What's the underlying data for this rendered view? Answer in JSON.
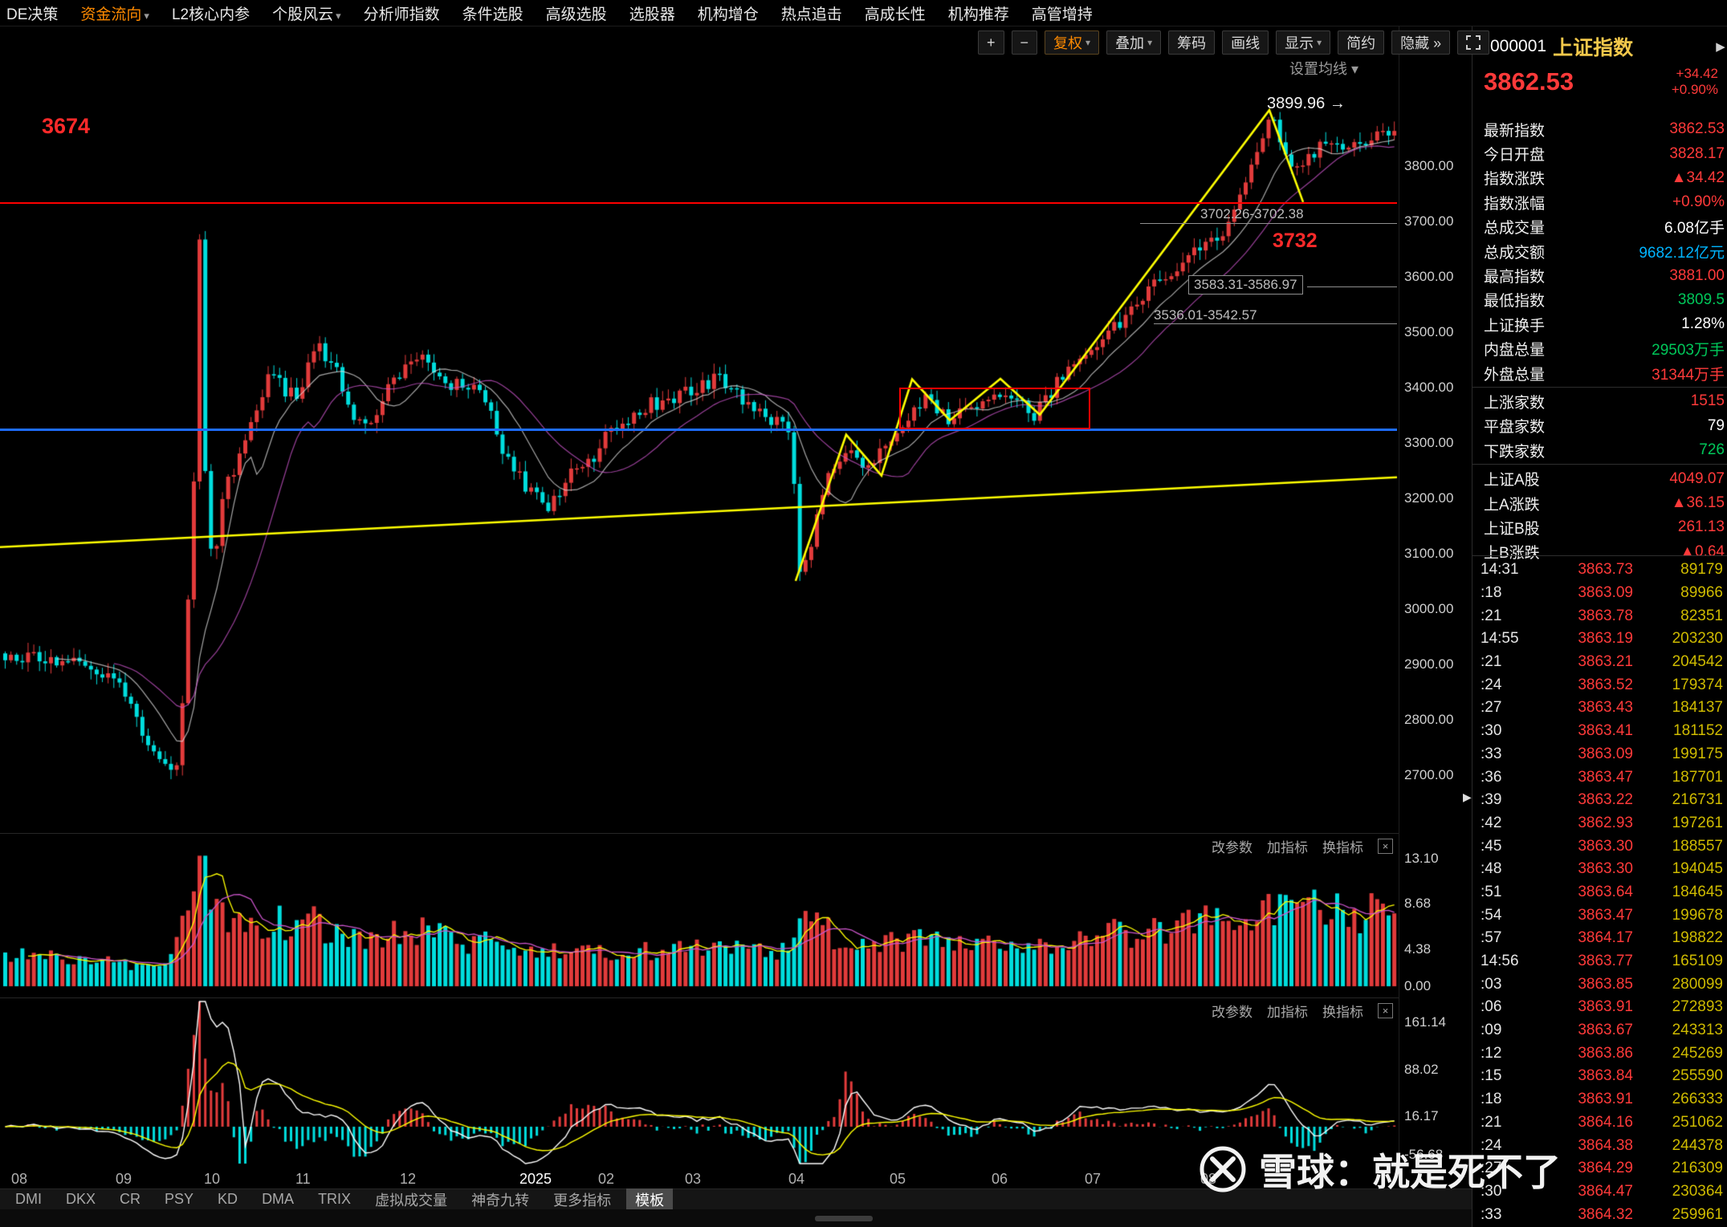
{
  "menu": {
    "items": [
      {
        "label": "DE决策",
        "caret": false,
        "active": false
      },
      {
        "label": "资金流向",
        "caret": true,
        "active": true
      },
      {
        "label": "L2核心内参",
        "caret": false,
        "active": false
      },
      {
        "label": "个股风云",
        "caret": true,
        "active": false
      },
      {
        "label": "分析师指数",
        "caret": false,
        "active": false
      },
      {
        "label": "条件选股",
        "caret": false,
        "active": false
      },
      {
        "label": "高级选股",
        "caret": false,
        "active": false
      },
      {
        "label": "选股器",
        "caret": false,
        "active": false
      },
      {
        "label": "机构增仓",
        "caret": false,
        "active": false
      },
      {
        "label": "热点追击",
        "caret": false,
        "active": false
      },
      {
        "label": "高成长性",
        "caret": false,
        "active": false
      },
      {
        "label": "机构推荐",
        "caret": false,
        "active": false
      },
      {
        "label": "高管增持",
        "caret": false,
        "active": false
      }
    ]
  },
  "toolbar": {
    "zoom_in": "+",
    "zoom_out": "−",
    "fuquan": "复权",
    "overlay": "叠加",
    "chips": "筹码",
    "draw": "画线",
    "display": "显示",
    "simple": "简约",
    "hide": "隐藏 »",
    "set_ma": "设置均线 ▾"
  },
  "chart": {
    "y_labels": [
      "3800.00",
      "3700.00",
      "3600.00",
      "3500.00",
      "3400.00",
      "3300.00",
      "3200.00",
      "3100.00",
      "3000.00",
      "2900.00",
      "2800.00",
      "2700.00"
    ],
    "vol_labels": [
      "13.10",
      "8.68",
      "4.38",
      "0.00"
    ],
    "ind_labels": [
      "161.14",
      "88.02",
      "16.17",
      "-56.68"
    ],
    "x_labels": [
      "08",
      "09",
      "10",
      "11",
      "12",
      "2025",
      "02",
      "03",
      "04",
      "05",
      "06",
      "07",
      "08"
    ],
    "panels": {
      "edit": "改参数",
      "add": "加指标",
      "switch": "换指标",
      "close": "×"
    },
    "annotations": {
      "high_left": "3674",
      "peak": "3899.96 →",
      "level": "3732",
      "range_a": "3702.26-3702.38",
      "range_b": "3583.31-3586.97",
      "range_c": "3536.01-3542.57"
    }
  },
  "chart_data": {
    "type": "candlestick",
    "title": "上证指数 日K",
    "ylim": [
      2640,
      3960
    ],
    "price_path": [
      [
        0,
        2920
      ],
      [
        0.05,
        2900
      ],
      [
        0.08,
        2880
      ],
      [
        0.1,
        2770
      ],
      [
        0.118,
        2700
      ],
      [
        0.126,
        2740
      ],
      [
        0.13,
        2950
      ],
      [
        0.134,
        3083
      ],
      [
        0.1365,
        3300
      ],
      [
        0.1385,
        3674
      ],
      [
        0.1405,
        3674
      ],
      [
        0.1425,
        3300
      ],
      [
        0.146,
        3170
      ],
      [
        0.15,
        3080
      ],
      [
        0.158,
        3220
      ],
      [
        0.17,
        3280
      ],
      [
        0.19,
        3420
      ],
      [
        0.21,
        3380
      ],
      [
        0.225,
        3480
      ],
      [
        0.24,
        3420
      ],
      [
        0.25,
        3350
      ],
      [
        0.265,
        3330
      ],
      [
        0.28,
        3420
      ],
      [
        0.3,
        3470
      ],
      [
        0.315,
        3400
      ],
      [
        0.33,
        3410
      ],
      [
        0.345,
        3380
      ],
      [
        0.36,
        3280
      ],
      [
        0.375,
        3220
      ],
      [
        0.39,
        3180
      ],
      [
        0.405,
        3240
      ],
      [
        0.42,
        3260
      ],
      [
        0.435,
        3320
      ],
      [
        0.45,
        3340
      ],
      [
        0.465,
        3370
      ],
      [
        0.48,
        3380
      ],
      [
        0.5,
        3400
      ],
      [
        0.515,
        3420
      ],
      [
        0.53,
        3380
      ],
      [
        0.545,
        3350
      ],
      [
        0.558,
        3340
      ],
      [
        0.566,
        3310
      ],
      [
        0.572,
        3055
      ],
      [
        0.578,
        3100
      ],
      [
        0.59,
        3230
      ],
      [
        0.605,
        3280
      ],
      [
        0.62,
        3260
      ],
      [
        0.635,
        3290
      ],
      [
        0.65,
        3350
      ],
      [
        0.665,
        3380
      ],
      [
        0.68,
        3340
      ],
      [
        0.695,
        3360
      ],
      [
        0.71,
        3390
      ],
      [
        0.725,
        3380
      ],
      [
        0.74,
        3350
      ],
      [
        0.755,
        3400
      ],
      [
        0.77,
        3450
      ],
      [
        0.785,
        3480
      ],
      [
        0.8,
        3510
      ],
      [
        0.815,
        3560
      ],
      [
        0.83,
        3590
      ],
      [
        0.845,
        3620
      ],
      [
        0.86,
        3650
      ],
      [
        0.875,
        3680
      ],
      [
        0.885,
        3720
      ],
      [
        0.895,
        3790
      ],
      [
        0.905,
        3855
      ],
      [
        0.912,
        3890
      ],
      [
        0.918,
        3835
      ],
      [
        0.925,
        3812
      ],
      [
        0.935,
        3800
      ],
      [
        0.945,
        3830
      ],
      [
        0.955,
        3850
      ],
      [
        0.965,
        3840
      ],
      [
        0.975,
        3828
      ],
      [
        0.985,
        3850
      ],
      [
        1,
        3862
      ]
    ],
    "vol_path": [
      [
        0,
        3.2
      ],
      [
        0.06,
        2.6
      ],
      [
        0.1,
        2.2
      ],
      [
        0.122,
        3.5
      ],
      [
        0.13,
        7
      ],
      [
        0.136,
        11
      ],
      [
        0.14,
        13.2
      ],
      [
        0.147,
        10
      ],
      [
        0.155,
        8
      ],
      [
        0.17,
        6.5
      ],
      [
        0.19,
        7
      ],
      [
        0.21,
        6
      ],
      [
        0.225,
        6.5
      ],
      [
        0.25,
        5
      ],
      [
        0.28,
        5.2
      ],
      [
        0.3,
        5.5
      ],
      [
        0.33,
        4.5
      ],
      [
        0.36,
        4.2
      ],
      [
        0.39,
        3.6
      ],
      [
        0.42,
        3.4
      ],
      [
        0.45,
        3.8
      ],
      [
        0.48,
        3.6
      ],
      [
        0.51,
        3.9
      ],
      [
        0.54,
        3.6
      ],
      [
        0.565,
        3.4
      ],
      [
        0.572,
        8.8
      ],
      [
        0.58,
        6.5
      ],
      [
        0.6,
        5
      ],
      [
        0.63,
        4.2
      ],
      [
        0.66,
        4.6
      ],
      [
        0.69,
        4
      ],
      [
        0.72,
        4
      ],
      [
        0.75,
        4.4
      ],
      [
        0.78,
        5
      ],
      [
        0.81,
        5.6
      ],
      [
        0.84,
        6.2
      ],
      [
        0.87,
        6.8
      ],
      [
        0.9,
        8.2
      ],
      [
        0.92,
        8.6
      ],
      [
        0.95,
        7.6
      ],
      [
        0.98,
        7.8
      ],
      [
        1,
        6.2
      ]
    ],
    "levels": {
      "red_line": 3735,
      "blue_line": 3326,
      "range_a": 3702.32,
      "range_b": 3585.14,
      "range_c": 3539.29,
      "box": {
        "f0": 0.6437,
        "f1": 0.7805,
        "p_top": 3400,
        "p_bot": 3325
      },
      "trend": [
        [
          0,
          3112
        ],
        [
          1,
          3238
        ]
      ],
      "zigzag": [
        [
          0.5695,
          3051
        ],
        [
          0.6057,
          3315
        ],
        [
          0.631,
          3241
        ],
        [
          0.6529,
          3415
        ],
        [
          0.6799,
          3341
        ],
        [
          0.7161,
          3416
        ],
        [
          0.7443,
          3351
        ],
        [
          0.9086,
          3901
        ],
        [
          0.9328,
          3735
        ]
      ]
    }
  },
  "quote": {
    "prev_arrow": "◀",
    "next_arrow": "▶",
    "code": "000001",
    "name": "上证指数",
    "price": "3862.53",
    "change": "+34.42",
    "pct": "+0.90%",
    "rows": [
      {
        "label": "最新指数",
        "value": "3862.53",
        "c": "up",
        "sep": false
      },
      {
        "label": "今日开盘",
        "value": "3828.17",
        "c": "up",
        "sep": false
      },
      {
        "label": "指数涨跌",
        "value": "▲34.42",
        "c": "up",
        "sep": false
      },
      {
        "label": "指数涨幅",
        "value": "+0.90%",
        "c": "up",
        "sep": false
      },
      {
        "label": "总成交量",
        "value": "6.08亿手",
        "c": "flat",
        "sep": false
      },
      {
        "label": "总成交额",
        "value": "9682.12亿元",
        "c": "cyan",
        "sep": false
      },
      {
        "label": "最高指数",
        "value": "3881.00",
        "c": "up",
        "sep": false
      },
      {
        "label": "最低指数",
        "value": "3809.5",
        "c": "down",
        "sep": false
      },
      {
        "label": "上证换手",
        "value": "1.28%",
        "c": "flat",
        "sep": false
      },
      {
        "label": "内盘总量",
        "value": "29503万手",
        "c": "down",
        "sep": false
      },
      {
        "label": "外盘总量",
        "value": "31344万手",
        "c": "up",
        "sep": true
      },
      {
        "label": "上涨家数",
        "value": "1515",
        "c": "up",
        "sep": false
      },
      {
        "label": "平盘家数",
        "value": "79",
        "c": "flat",
        "sep": false
      },
      {
        "label": "下跌家数",
        "value": "726",
        "c": "down",
        "sep": true
      },
      {
        "label": "上证A股",
        "value": "4049.07",
        "c": "up",
        "sep": false
      },
      {
        "label": "上A涨跌",
        "value": "▲36.15",
        "c": "up",
        "sep": false
      },
      {
        "label": "上证B股",
        "value": "261.13",
        "c": "up",
        "sep": false
      },
      {
        "label": "上B涨跌",
        "value": "▲0.64",
        "c": "up",
        "sep": false
      }
    ]
  },
  "ticks": {
    "rows": [
      {
        "t": "14:31",
        "p": "3863.73",
        "v": "89179"
      },
      {
        "t": ":18",
        "p": "3863.09",
        "v": "89966"
      },
      {
        "t": ":21",
        "p": "3863.78",
        "v": "82351"
      },
      {
        "t": "14:55",
        "p": "3863.19",
        "v": "203230"
      },
      {
        "t": ":21",
        "p": "3863.21",
        "v": "204542"
      },
      {
        "t": ":24",
        "p": "3863.52",
        "v": "179374"
      },
      {
        "t": ":27",
        "p": "3863.43",
        "v": "184137"
      },
      {
        "t": ":30",
        "p": "3863.41",
        "v": "181152"
      },
      {
        "t": ":33",
        "p": "3863.09",
        "v": "199175"
      },
      {
        "t": ":36",
        "p": "3863.47",
        "v": "187701"
      },
      {
        "t": ":39",
        "p": "3863.22",
        "v": "216731"
      },
      {
        "t": ":42",
        "p": "3862.93",
        "v": "197261"
      },
      {
        "t": ":45",
        "p": "3863.30",
        "v": "188557"
      },
      {
        "t": ":48",
        "p": "3863.30",
        "v": "194045"
      },
      {
        "t": ":51",
        "p": "3863.64",
        "v": "184645"
      },
      {
        "t": ":54",
        "p": "3863.47",
        "v": "199678"
      },
      {
        "t": ":57",
        "p": "3864.17",
        "v": "198822"
      },
      {
        "t": "14:56",
        "p": "3863.77",
        "v": "165109"
      },
      {
        "t": ":03",
        "p": "3863.85",
        "v": "280099"
      },
      {
        "t": ":06",
        "p": "3863.91",
        "v": "272893"
      },
      {
        "t": ":09",
        "p": "3863.67",
        "v": "243313"
      },
      {
        "t": ":12",
        "p": "3863.86",
        "v": "245269"
      },
      {
        "t": ":15",
        "p": "3863.84",
        "v": "255590"
      },
      {
        "t": ":18",
        "p": "3863.91",
        "v": "266333"
      },
      {
        "t": ":21",
        "p": "3864.16",
        "v": "251062"
      },
      {
        "t": ":24",
        "p": "3864.38",
        "v": "244378"
      },
      {
        "t": ":27",
        "p": "3864.29",
        "v": "216309"
      },
      {
        "t": ":30",
        "p": "3864.47",
        "v": "230364"
      },
      {
        "t": ":33",
        "p": "3864.32",
        "v": "259961"
      }
    ]
  },
  "tabs": {
    "items": [
      "DMI",
      "DKX",
      "CR",
      "PSY",
      "KD",
      "DMA",
      "TRIX",
      "虚拟成交量",
      "神奇九转",
      "更多指标",
      "模板"
    ],
    "active_index": 10
  },
  "watermark": {
    "text": "雪球：就是死不了"
  },
  "colors": {
    "up": "#e23b3b",
    "down": "#00e0e0",
    "accent": "#ff8a00",
    "yellow": "#ffff00",
    "blue": "#1e6dff",
    "red_line": "#ff0000"
  }
}
